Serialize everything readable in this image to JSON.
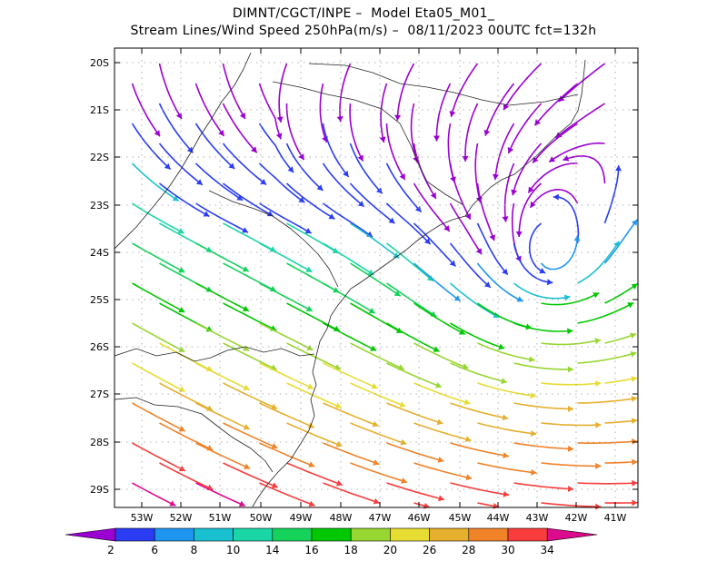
{
  "title": {
    "line1": "DIMNT/CGCT/INPE –  Model Eta05_M01_",
    "line2": "Stream Lines/Wind Speed 250hPa(m/s) –  08/11/2023 00UTC fct=132h"
  },
  "map": {
    "lat_labels": [
      "20S",
      "21S",
      "22S",
      "23S",
      "24S",
      "25S",
      "26S",
      "27S",
      "28S",
      "29S"
    ],
    "lon_labels": [
      "53W",
      "52W",
      "51W",
      "50W",
      "49W",
      "48W",
      "47W",
      "46W",
      "45W",
      "44W",
      "43W",
      "42W",
      "41W"
    ],
    "lon_range": [
      -53.8,
      -40.6
    ],
    "lat_range": [
      -29.4,
      -19.8
    ],
    "grid": true
  },
  "colorbar": {
    "labels": [
      "2",
      "6",
      "8",
      "10",
      "14",
      "16",
      "18",
      "20",
      "26",
      "28",
      "30",
      "34"
    ],
    "colors": [
      "#9b00d3",
      "#2a3df5",
      "#1e96f0",
      "#19c0d0",
      "#1ad6a6",
      "#14d25a",
      "#00c800",
      "#98d632",
      "#e6dc32",
      "#e6af2d",
      "#f08228",
      "#fa3c3c",
      "#dc0a8c"
    ]
  }
}
